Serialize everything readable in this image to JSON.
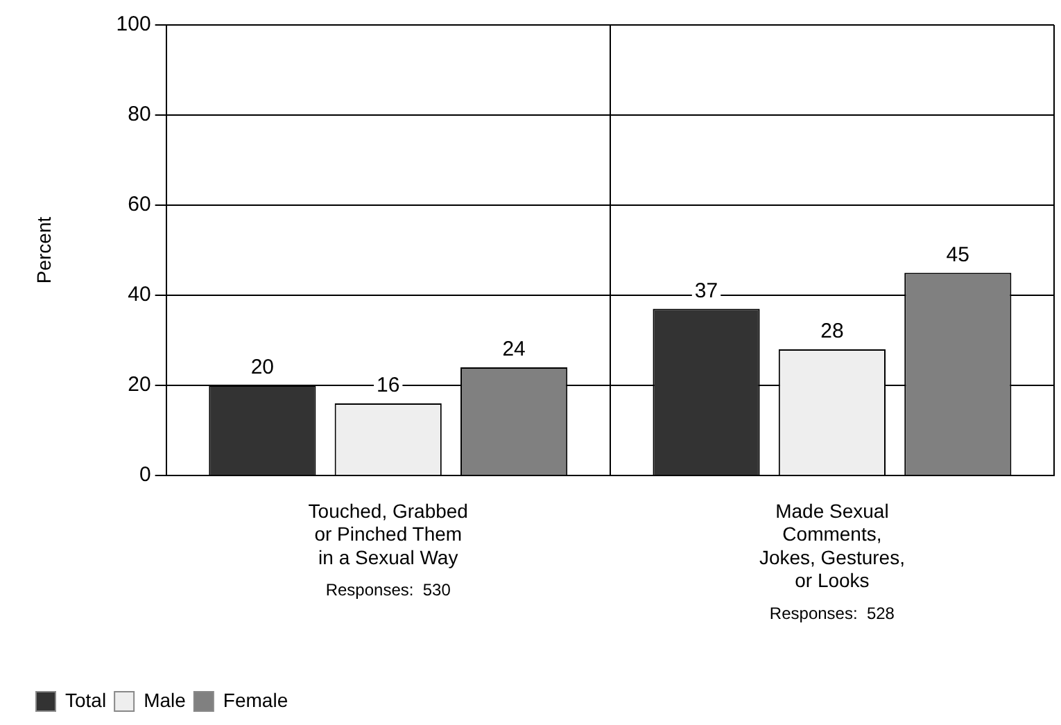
{
  "chart_data": {
    "type": "bar",
    "ylabel": "Percent",
    "categories": [
      "Touched, Grabbed\nor Pinched Them\nin a Sexual Way",
      "Made Sexual\nComments,\nJokes, Gestures,\nor Looks"
    ],
    "series": [
      {
        "name": "Total",
        "color": "#333333",
        "values": [
          20,
          37
        ]
      },
      {
        "name": "Male",
        "color": "#eeeeee",
        "values": [
          16,
          28
        ]
      },
      {
        "name": "Female",
        "color": "#808080",
        "values": [
          24,
          45
        ]
      }
    ],
    "ylim": [
      0,
      100
    ],
    "yticks": [
      0,
      20,
      40,
      60,
      80,
      100
    ],
    "grid": true,
    "legend": "bottom left",
    "data_labels": true,
    "annotations": [
      "Responses:  530",
      "Responses:  528"
    ]
  }
}
